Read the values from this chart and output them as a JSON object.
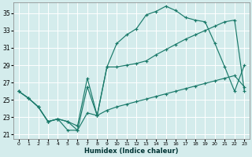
{
  "xlabel": "Humidex (Indice chaleur)",
  "bg_color": "#d4ecec",
  "grid_color": "#ffffff",
  "line_color": "#1a7a6a",
  "xlim": [
    -0.5,
    23.5
  ],
  "ylim": [
    20.5,
    36.2
  ],
  "xticks": [
    0,
    1,
    2,
    3,
    4,
    5,
    6,
    7,
    8,
    9,
    10,
    11,
    12,
    13,
    14,
    15,
    16,
    17,
    18,
    19,
    20,
    21,
    22,
    23
  ],
  "yticks": [
    21,
    23,
    25,
    27,
    29,
    31,
    33,
    35
  ],
  "line1_x": [
    0,
    1,
    2,
    3,
    4,
    5,
    6,
    7,
    8,
    9,
    10,
    11,
    12,
    13,
    14,
    15,
    16,
    17,
    18,
    19,
    20,
    21,
    22,
    23
  ],
  "line1_y": [
    26.0,
    25.2,
    24.2,
    22.5,
    22.8,
    21.5,
    21.5,
    26.5,
    23.2,
    28.8,
    31.5,
    32.5,
    33.2,
    34.8,
    35.2,
    35.8,
    35.3,
    34.5,
    34.2,
    34.0,
    31.5,
    28.8,
    26.0,
    29.0
  ],
  "line2_x": [
    0,
    1,
    2,
    3,
    4,
    5,
    6,
    7,
    8,
    9,
    10,
    11,
    12,
    13,
    14,
    15,
    16,
    17,
    18,
    19,
    20,
    21,
    22,
    23
  ],
  "line2_y": [
    26.0,
    25.2,
    24.2,
    22.5,
    22.8,
    22.5,
    22.0,
    27.5,
    23.2,
    28.8,
    28.8,
    29.0,
    29.2,
    29.5,
    30.2,
    30.8,
    31.4,
    32.0,
    32.5,
    33.0,
    33.5,
    34.0,
    34.2,
    26.0
  ],
  "line3_x": [
    0,
    1,
    2,
    3,
    4,
    5,
    6,
    7,
    8,
    9,
    10,
    11,
    12,
    13,
    14,
    15,
    16,
    17,
    18,
    19,
    20,
    21,
    22,
    23
  ],
  "line3_y": [
    26.0,
    25.2,
    24.2,
    22.5,
    22.8,
    22.5,
    21.5,
    23.5,
    23.2,
    23.8,
    24.2,
    24.5,
    24.8,
    25.1,
    25.4,
    25.7,
    26.0,
    26.3,
    26.6,
    26.9,
    27.2,
    27.5,
    27.8,
    26.5
  ]
}
